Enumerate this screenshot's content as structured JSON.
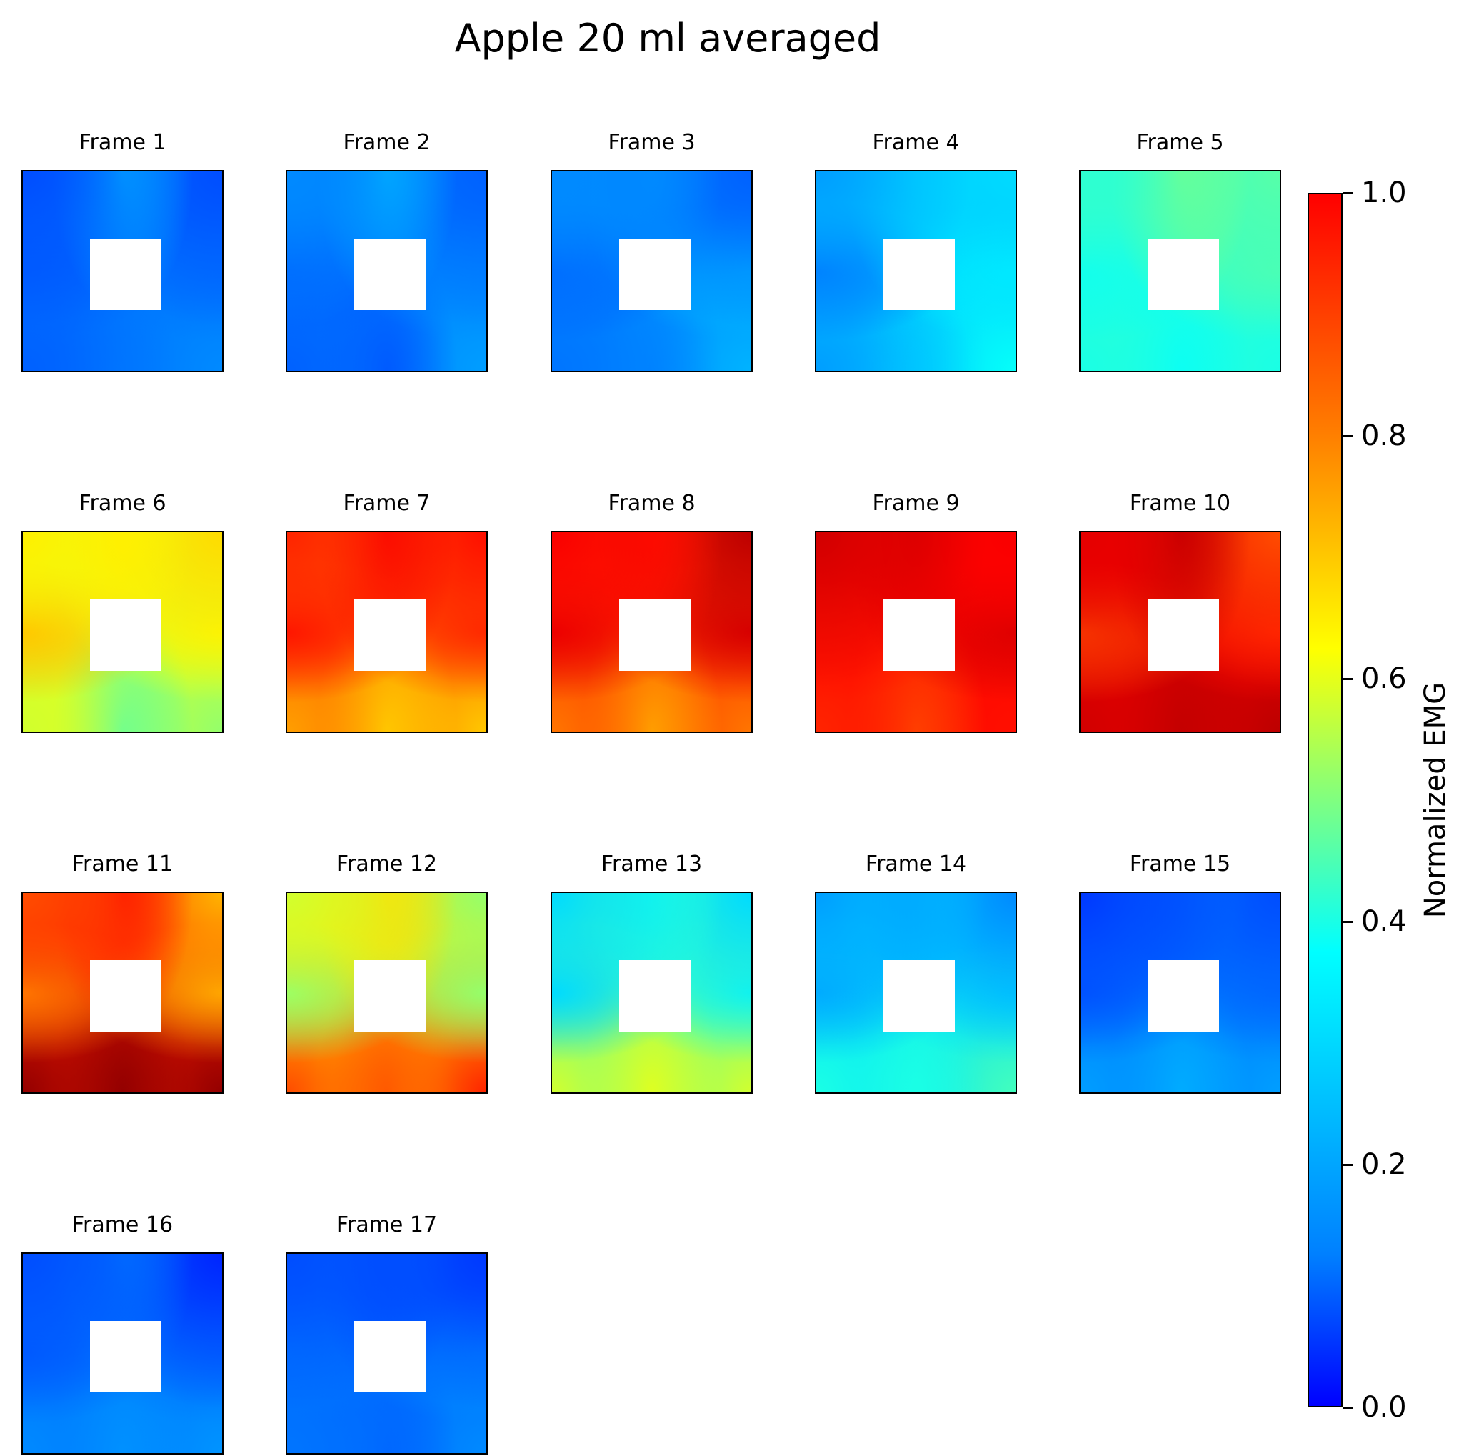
{
  "chart_data": {
    "type": "heatmap",
    "title": "Apple 20 ml averaged",
    "colormap": "jet",
    "colorbar": {
      "label": "Normalized EMG",
      "range": [
        0.0,
        1.0
      ],
      "ticks": [
        "0.0",
        "0.2",
        "0.4",
        "0.6",
        "0.8",
        "1.0"
      ]
    },
    "panels": [
      {
        "title": "Frame 1",
        "values": {
          "tl": 0.2,
          "t": 0.3,
          "tr": 0.2,
          "l": 0.22,
          "r": 0.24,
          "bl": 0.22,
          "b": 0.25,
          "br": 0.26
        }
      },
      {
        "title": "Frame 2",
        "values": {
          "tl": 0.26,
          "t": 0.3,
          "tr": 0.22,
          "l": 0.22,
          "r": 0.26,
          "bl": 0.22,
          "b": 0.21,
          "br": 0.28
        }
      },
      {
        "title": "Frame 3",
        "values": {
          "tl": 0.26,
          "t": 0.26,
          "tr": 0.22,
          "l": 0.22,
          "r": 0.3,
          "bl": 0.24,
          "b": 0.26,
          "br": 0.3
        }
      },
      {
        "title": "Frame 4",
        "values": {
          "tl": 0.28,
          "t": 0.34,
          "tr": 0.34,
          "l": 0.24,
          "r": 0.36,
          "bl": 0.28,
          "b": 0.34,
          "br": 0.38
        }
      },
      {
        "title": "Frame 5",
        "values": {
          "tl": 0.42,
          "t": 0.5,
          "tr": 0.46,
          "l": 0.38,
          "r": 0.44,
          "bl": 0.4,
          "b": 0.38,
          "br": 0.4
        }
      },
      {
        "title": "Frame 6",
        "values": {
          "tl": 0.64,
          "t": 0.64,
          "tr": 0.66,
          "l": 0.7,
          "r": 0.62,
          "bl": 0.58,
          "b": 0.44,
          "br": 0.52
        }
      },
      {
        "title": "Frame 7",
        "values": {
          "tl": 0.84,
          "t": 0.88,
          "tr": 0.86,
          "l": 0.86,
          "r": 0.82,
          "bl": 0.72,
          "b": 0.66,
          "br": 0.68
        }
      },
      {
        "title": "Frame 8",
        "values": {
          "tl": 0.88,
          "t": 0.86,
          "tr": 0.94,
          "l": 0.9,
          "r": 0.9,
          "bl": 0.76,
          "b": 0.7,
          "br": 0.76
        }
      },
      {
        "title": "Frame 9",
        "values": {
          "tl": 0.92,
          "t": 0.9,
          "tr": 0.88,
          "l": 0.86,
          "r": 0.92,
          "bl": 0.84,
          "b": 0.8,
          "br": 0.86
        }
      },
      {
        "title": "Frame 10",
        "values": {
          "tl": 0.9,
          "t": 0.94,
          "tr": 0.8,
          "l": 0.8,
          "r": 0.86,
          "bl": 0.92,
          "b": 0.94,
          "br": 0.94
        }
      },
      {
        "title": "Frame 11",
        "values": {
          "tl": 0.8,
          "t": 0.86,
          "tr": 0.7,
          "l": 0.74,
          "r": 0.72,
          "bl": 0.98,
          "b": 0.98,
          "br": 0.98
        }
      },
      {
        "title": "Frame 12",
        "values": {
          "tl": 0.58,
          "t": 0.66,
          "tr": 0.52,
          "l": 0.5,
          "r": 0.52,
          "bl": 0.8,
          "b": 0.78,
          "br": 0.84
        }
      },
      {
        "title": "Frame 13",
        "values": {
          "tl": 0.34,
          "t": 0.4,
          "tr": 0.34,
          "l": 0.34,
          "r": 0.4,
          "bl": 0.58,
          "b": 0.6,
          "br": 0.58
        }
      },
      {
        "title": "Frame 14",
        "values": {
          "tl": 0.28,
          "t": 0.3,
          "tr": 0.26,
          "l": 0.3,
          "r": 0.34,
          "bl": 0.4,
          "b": 0.4,
          "br": 0.44
        }
      },
      {
        "title": "Frame 15",
        "values": {
          "tl": 0.18,
          "t": 0.22,
          "tr": 0.2,
          "l": 0.22,
          "r": 0.24,
          "bl": 0.28,
          "b": 0.3,
          "br": 0.28
        }
      },
      {
        "title": "Frame 16",
        "values": {
          "tl": 0.2,
          "t": 0.24,
          "tr": 0.16,
          "l": 0.22,
          "r": 0.24,
          "bl": 0.26,
          "b": 0.27,
          "br": 0.27
        }
      },
      {
        "title": "Frame 17",
        "values": {
          "tl": 0.2,
          "t": 0.2,
          "tr": 0.18,
          "l": 0.24,
          "r": 0.26,
          "bl": 0.24,
          "b": 0.22,
          "br": 0.26
        }
      }
    ]
  }
}
